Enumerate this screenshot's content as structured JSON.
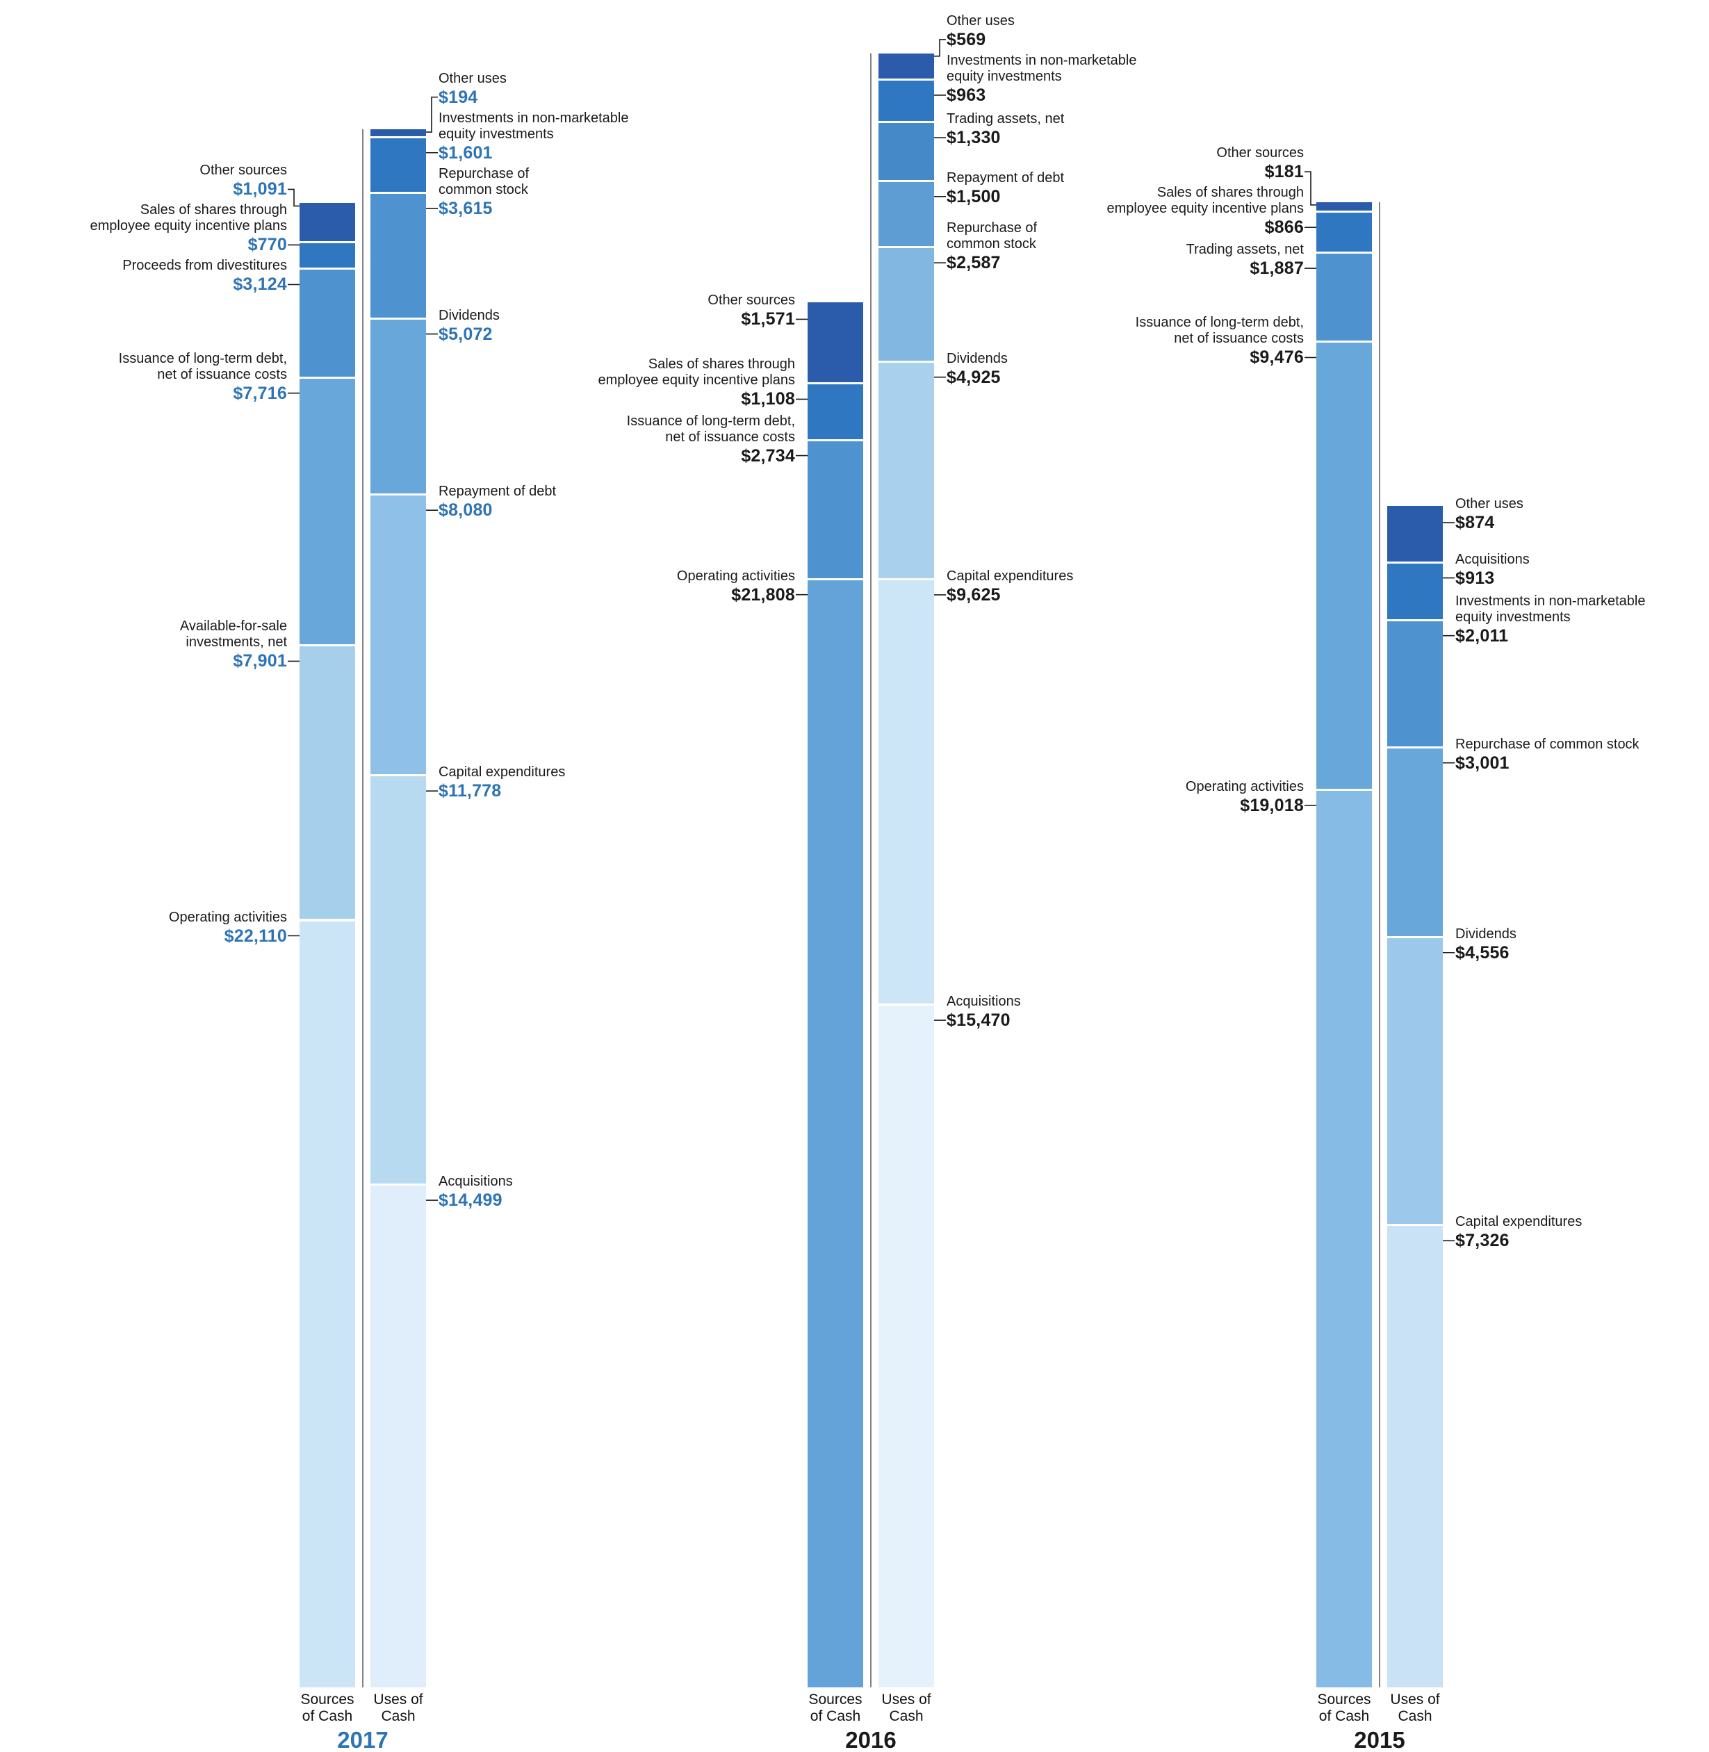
{
  "chart_data": {
    "type": "bar",
    "subtype": "stacked-sources-uses-of-cash",
    "unit": "USD millions",
    "grid": false,
    "legend": "none",
    "background_color": "#ffffff",
    "axis": {
      "sources": "Sources\nof Cash",
      "uses": "Uses of\nCash"
    },
    "years": [
      {
        "year": "2017",
        "year_color": "#2e74b5",
        "value_color": "#2e74b5",
        "sources": {
          "segments": [
            {
              "label": "Other sources",
              "value": 1091,
              "display": "$1,091",
              "color": "#2a5cab"
            },
            {
              "label": "Sales of shares through\nemployee equity incentive plans",
              "value": 770,
              "display": "$770",
              "color": "#2f77c0"
            },
            {
              "label": "Proceeds from divestitures",
              "value": 3124,
              "display": "$3,124",
              "color": "#4e92d0"
            },
            {
              "label": "Issuance of long-term debt,\nnet of issuance costs",
              "value": 7716,
              "display": "$7,716",
              "color": "#68a7da"
            },
            {
              "label": "Available-for-sale\ninvestments, net",
              "value": 7901,
              "display": "$7,901",
              "color": "#a6cfec"
            },
            {
              "label": "Operating activities",
              "value": 22110,
              "display": "$22,110",
              "color": "#cbe4f6"
            }
          ]
        },
        "uses": {
          "segments": [
            {
              "label": "Other uses",
              "value": 194,
              "display": "$194",
              "color": "#2a5cab"
            },
            {
              "label": "Investments in non-marketable\nequity investments",
              "value": 1601,
              "display": "$1,601",
              "color": "#2f77c0"
            },
            {
              "label": "Repurchase of\ncommon stock",
              "value": 3615,
              "display": "$3,615",
              "color": "#4e92d0"
            },
            {
              "label": "Dividends",
              "value": 5072,
              "display": "$5,072",
              "color": "#68a7da"
            },
            {
              "label": "Repayment of debt",
              "value": 8080,
              "display": "$8,080",
              "color": "#8fc0e7"
            },
            {
              "label": "Capital expenditures",
              "value": 11778,
              "display": "$11,778",
              "color": "#b7daf1"
            },
            {
              "label": "Acquisitions",
              "value": 14499,
              "display": "$14,499",
              "color": "#dfeefa"
            }
          ]
        }
      },
      {
        "year": "2016",
        "year_color": "#1a1a1a",
        "value_color": "#1a1a1a",
        "sources": {
          "segments": [
            {
              "label": "Other sources",
              "value": 1571,
              "display": "$1,571",
              "color": "#2a5cab"
            },
            {
              "label": "Sales of shares through\nemployee equity incentive plans",
              "value": 1108,
              "display": "$1,108",
              "color": "#2f77c0"
            },
            {
              "label": "Issuance of long-term debt,\nnet of issuance costs",
              "value": 2734,
              "display": "$2,734",
              "color": "#4e92d0"
            },
            {
              "label": "Operating activities",
              "value": 21808,
              "display": "$21,808",
              "color": "#64a3d8"
            }
          ]
        },
        "uses": {
          "segments": [
            {
              "label": "Other uses",
              "value": 569,
              "display": "$569",
              "color": "#2a5cab"
            },
            {
              "label": "Investments in non-marketable\nequity investments",
              "value": 963,
              "display": "$963",
              "color": "#2f77c0"
            },
            {
              "label": "Trading assets, net",
              "value": 1330,
              "display": "$1,330",
              "color": "#4689c9"
            },
            {
              "label": "Repayment of debt",
              "value": 1500,
              "display": "$1,500",
              "color": "#5d9dd4"
            },
            {
              "label": "Repurchase of\ncommon stock",
              "value": 2587,
              "display": "$2,587",
              "color": "#82b7e2"
            },
            {
              "label": "Dividends",
              "value": 4925,
              "display": "$4,925",
              "color": "#a9d1ee"
            },
            {
              "label": "Capital expenditures",
              "value": 9625,
              "display": "$9,625",
              "color": "#cde6f7"
            },
            {
              "label": "Acquisitions",
              "value": 15470,
              "display": "$15,470",
              "color": "#e6f2fb"
            }
          ]
        }
      },
      {
        "year": "2015",
        "year_color": "#1a1a1a",
        "value_color": "#1a1a1a",
        "sources": {
          "segments": [
            {
              "label": "Other sources",
              "value": 181,
              "display": "$181",
              "color": "#2a5cab"
            },
            {
              "label": "Sales of shares through\nemployee equity incentive plans",
              "value": 866,
              "display": "$866",
              "color": "#2f77c0"
            },
            {
              "label": "Trading assets, net",
              "value": 1887,
              "display": "$1,887",
              "color": "#4e92d0"
            },
            {
              "label": "Issuance of long-term debt,\nnet of issuance costs",
              "value": 9476,
              "display": "$9,476",
              "color": "#68a7da"
            },
            {
              "label": "Operating activities",
              "value": 19018,
              "display": "$19,018",
              "color": "#85bbe5"
            }
          ]
        },
        "uses": {
          "segments": [
            {
              "label": "Other uses",
              "value": 874,
              "display": "$874",
              "color": "#2a5cab"
            },
            {
              "label": "Acquisitions",
              "value": 913,
              "display": "$913",
              "color": "#2f77c0"
            },
            {
              "label": "Investments in non-marketable\nequity investments",
              "value": 2011,
              "display": "$2,011",
              "color": "#4e92d0"
            },
            {
              "label": "Repurchase of common stock",
              "value": 3001,
              "display": "$3,001",
              "color": "#68a7da"
            },
            {
              "label": "Dividends",
              "value": 4556,
              "display": "$4,556",
              "color": "#9bc8eb"
            },
            {
              "label": "Capital expenditures",
              "value": 7326,
              "display": "$7,326",
              "color": "#c9e2f5"
            }
          ]
        }
      }
    ]
  }
}
